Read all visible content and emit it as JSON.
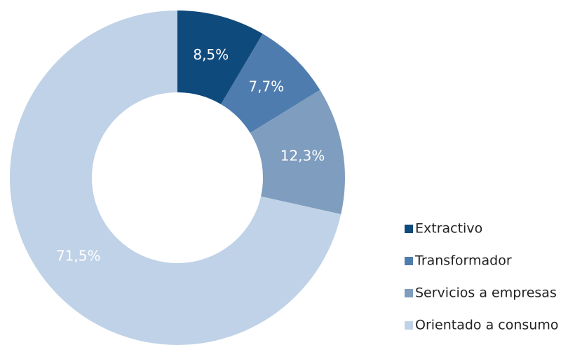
{
  "chart_data": {
    "type": "donut",
    "categories": [
      "Extractivo",
      "Transformador",
      "Servicios a empresas",
      "Orientado a consumo"
    ],
    "values": [
      8.5,
      7.7,
      12.3,
      71.5
    ],
    "value_labels": [
      "8,5%",
      "7,7%",
      "12,3%",
      "71,5%"
    ],
    "colors": [
      "#0f4a7c",
      "#4f7cae",
      "#7f9dbe",
      "#c0d2e7"
    ],
    "legend": "right"
  }
}
